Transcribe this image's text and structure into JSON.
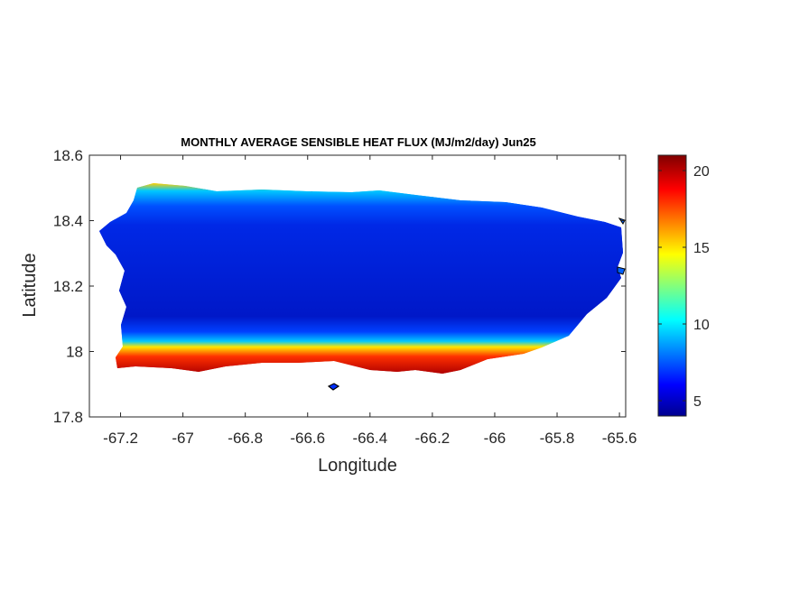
{
  "map": {
    "title": "MONTHLY AVERAGE SENSIBLE HEAT FLUX (MJ/m2/day) Jun25",
    "xlabel": "Longitude",
    "ylabel": "Latitude",
    "xlim": [
      -67.3,
      -65.58
    ],
    "ylim": [
      17.8,
      18.6
    ],
    "xticks": [
      "-67.2",
      "-67",
      "-66.8",
      "-66.6",
      "-66.4",
      "-66.2",
      "-66",
      "-65.8",
      "-65.6"
    ],
    "xtick_values": [
      -67.2,
      -67,
      -66.8,
      -66.6,
      -66.4,
      -66.2,
      -66,
      -65.8,
      -65.6
    ],
    "yticks": [
      "18.6",
      "18.4",
      "18.2",
      "18",
      "17.8"
    ],
    "ytick_values": [
      18.6,
      18.4,
      18.2,
      18,
      17.8
    ],
    "region": "Puerto Rico",
    "colormap": "jet"
  },
  "colorbar": {
    "range": [
      4,
      21
    ],
    "ticks": [
      "20",
      "15",
      "10",
      "5"
    ],
    "tick_values": [
      20,
      15,
      10,
      5
    ]
  },
  "colors": {
    "low": "#00008f",
    "mid_low": "#0050ff",
    "mid": "#00ffff",
    "mid_high": "#ffff00",
    "high": "#ff3000",
    "max": "#800000"
  }
}
